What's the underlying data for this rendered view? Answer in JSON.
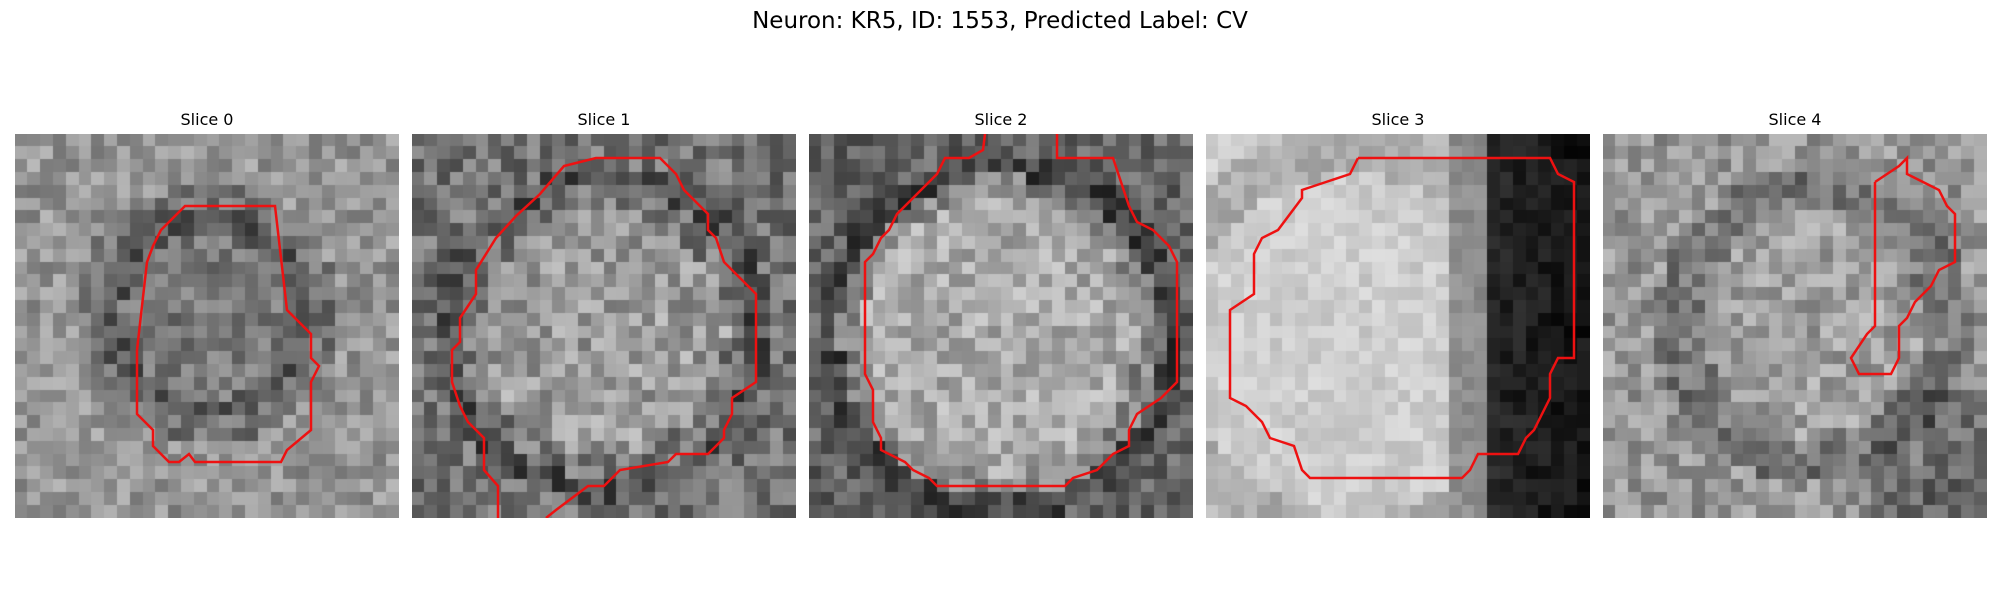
{
  "figure": {
    "title": "Neuron: KR5, ID: 1553, Predicted Label: CV",
    "panels": [
      {
        "title": "Slice 0",
        "image": "neuron-crop-slice-0",
        "overlay": "red-contour"
      },
      {
        "title": "Slice 1",
        "image": "neuron-crop-slice-1",
        "overlay": "red-contour"
      },
      {
        "title": "Slice 2",
        "image": "neuron-crop-slice-2",
        "overlay": "red-contour"
      },
      {
        "title": "Slice 3",
        "image": "neuron-crop-slice-3",
        "overlay": "red-contour"
      },
      {
        "title": "Slice 4",
        "image": "neuron-crop-slice-4",
        "overlay": "red-contour"
      }
    ]
  },
  "colors": {
    "background": "#ffffff",
    "contour": "#ee1111",
    "text": "#000000"
  }
}
